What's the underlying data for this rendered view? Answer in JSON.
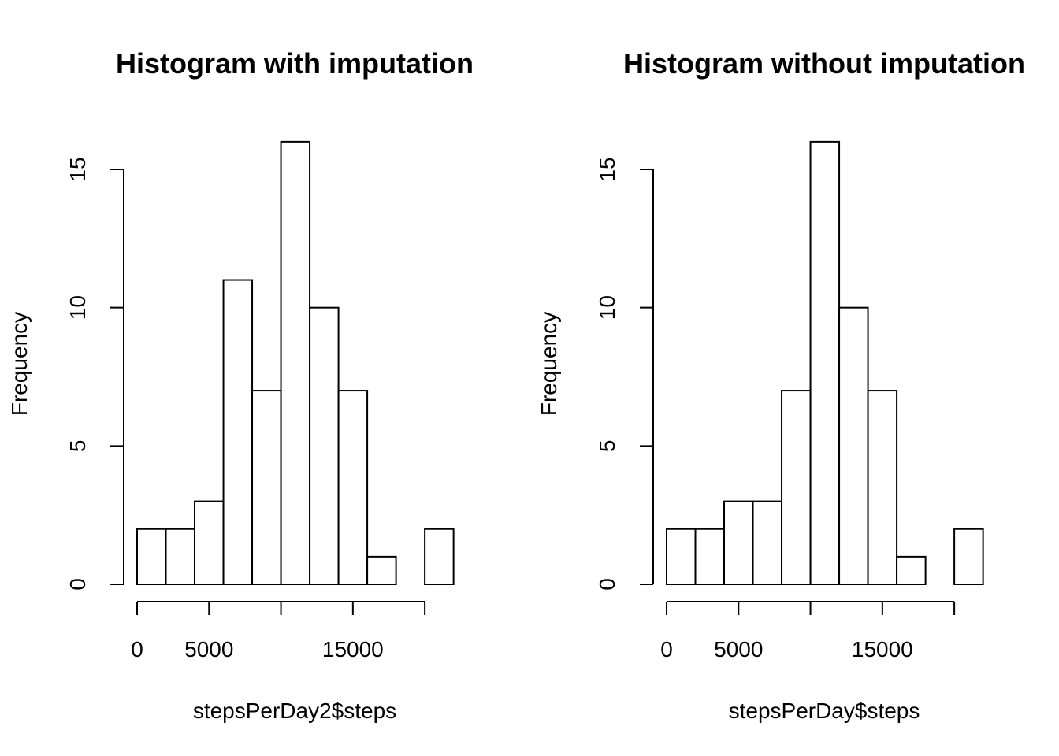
{
  "chart_data": [
    {
      "type": "bar",
      "title": "Histogram with imputation",
      "xlabel": "stepsPerDay2$steps",
      "ylabel": "Frequency",
      "bin_edges": [
        0,
        2000,
        4000,
        6000,
        8000,
        10000,
        12000,
        14000,
        16000,
        18000,
        20000,
        22000
      ],
      "values": [
        2,
        2,
        3,
        11,
        7,
        16,
        10,
        7,
        1,
        0,
        2
      ],
      "xlim": [
        0,
        22000
      ],
      "ylim": [
        0,
        16
      ],
      "x_ticks": [
        0,
        5000,
        10000,
        15000,
        20000
      ],
      "x_tick_labels": [
        "0",
        "5000",
        "",
        "15000",
        ""
      ],
      "y_ticks": [
        0,
        5,
        10,
        15
      ],
      "y_tick_labels": [
        "0",
        "5",
        "10",
        "15"
      ],
      "grid": false,
      "legend": "none"
    },
    {
      "type": "bar",
      "title": "Histogram without imputation",
      "xlabel": "stepsPerDay$steps",
      "ylabel": "Frequency",
      "bin_edges": [
        0,
        2000,
        4000,
        6000,
        8000,
        10000,
        12000,
        14000,
        16000,
        18000,
        20000,
        22000
      ],
      "values": [
        2,
        2,
        3,
        3,
        7,
        16,
        10,
        7,
        1,
        0,
        2
      ],
      "xlim": [
        0,
        22000
      ],
      "ylim": [
        0,
        16
      ],
      "x_ticks": [
        0,
        5000,
        10000,
        15000,
        20000
      ],
      "x_tick_labels": [
        "0",
        "5000",
        "",
        "15000",
        ""
      ],
      "y_ticks": [
        0,
        5,
        10,
        15
      ],
      "y_tick_labels": [
        "0",
        "5",
        "10",
        "15"
      ],
      "grid": false,
      "legend": "none"
    }
  ]
}
